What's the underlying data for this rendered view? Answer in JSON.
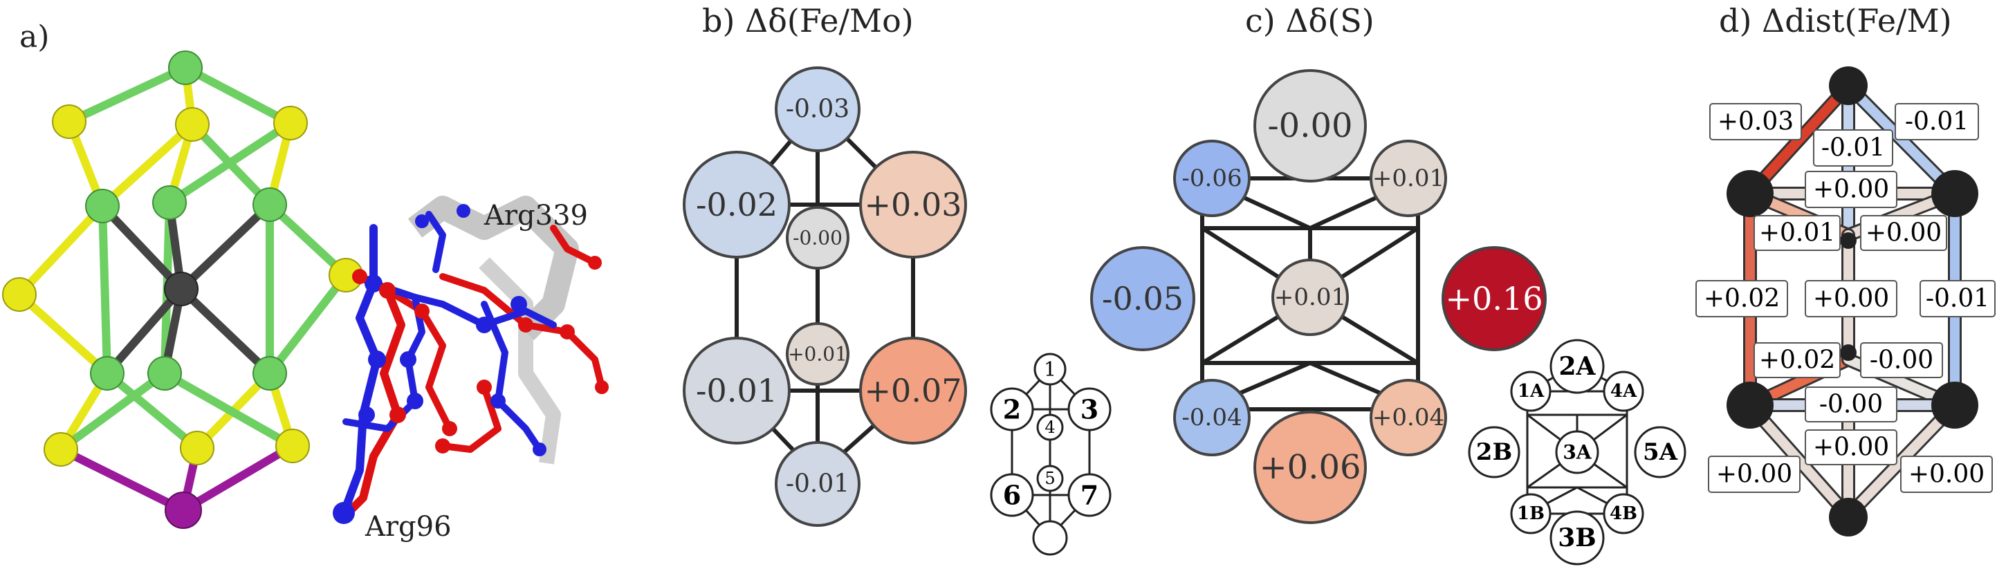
{
  "panels": {
    "a": {
      "label": "a)",
      "residue_top": "Arg339",
      "residue_bottom": "Arg96"
    },
    "b": {
      "label": "b) Δδ(Fe/Mo)"
    },
    "c": {
      "label": "c) Δδ(S)"
    },
    "d": {
      "label": "d) Δdist(Fe/M)"
    }
  },
  "colors": {
    "iron_sphere": "#6ecf63",
    "sulfur_sphere": "#e6e619",
    "molybdenum_sphere": "#9b1a9b",
    "carbide_sphere": "#444444",
    "residue_blue": "#2222dd",
    "residue_red": "#dd1111",
    "edge": "#222222"
  },
  "panel_b": {
    "nodes": [
      {
        "id": "1",
        "value": "-0.03",
        "color": "#c6d6ee"
      },
      {
        "id": "2",
        "value": "-0.02",
        "color": "#c9d6ea"
      },
      {
        "id": "3",
        "value": "+0.03",
        "color": "#f0cbb8"
      },
      {
        "id": "4",
        "value": "-0.00",
        "color": "#dcdcdc"
      },
      {
        "id": "5",
        "value": "+0.01",
        "color": "#e2d8d2"
      },
      {
        "id": "6",
        "value": "-0.01",
        "color": "#d4d8e0"
      },
      {
        "id": "7",
        "value": "+0.07",
        "color": "#f2a283"
      },
      {
        "id": "8",
        "value": "-0.01",
        "color": "#d0d8e6"
      }
    ],
    "legend_labels": [
      "1",
      "2",
      "3",
      "4",
      "5",
      "6",
      "7"
    ]
  },
  "panel_c": {
    "nodes": [
      {
        "id": "top",
        "value": "-0.00",
        "color": "#dcdcdc"
      },
      {
        "id": "1A",
        "value": "-0.06",
        "color": "#98b4ee"
      },
      {
        "id": "4A",
        "value": "+0.01",
        "color": "#e2d8d2"
      },
      {
        "id": "2B",
        "value": "-0.05",
        "color": "#9ab6ee"
      },
      {
        "id": "3A",
        "value": "+0.01",
        "color": "#e2d8d2"
      },
      {
        "id": "5A",
        "value": "+0.16",
        "color": "#b81226"
      },
      {
        "id": "1B",
        "value": "-0.04",
        "color": "#a6c0ee"
      },
      {
        "id": "4B",
        "value": "+0.04",
        "color": "#f0bfa6"
      },
      {
        "id": "3B",
        "value": "+0.06",
        "color": "#f2ad90"
      }
    ],
    "legend_labels": [
      "2A",
      "1A",
      "4A",
      "2B",
      "3A",
      "5A",
      "1B",
      "4B",
      "3B"
    ]
  },
  "panel_d": {
    "labels": [
      "+0.03",
      "-0.01",
      "-0.01",
      "+0.00",
      "+0.01",
      "+0.00",
      "+0.02",
      "+0.00",
      "-0.01",
      "+0.02",
      "-0.00",
      "-0.00",
      "+0.00",
      "+0.00",
      "+0.00"
    ]
  }
}
